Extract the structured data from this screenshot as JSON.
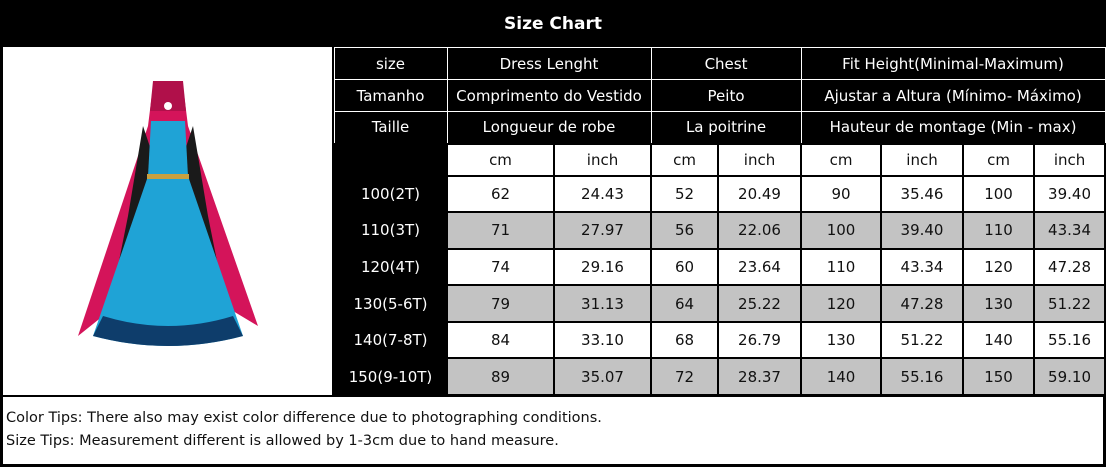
{
  "title": "Size Chart",
  "header_rows": [
    [
      "size",
      "Dress Lenght",
      "Chest",
      "Fit Height(Minimal-Maximum)"
    ],
    [
      "Tamanho",
      "Comprimento do Vestido",
      "Peito",
      "Ajustar a Altura (Mínimo- Máximo)"
    ],
    [
      "Taille",
      "Longueur de robe",
      "La poitrine",
      "Hauteur de montage (Min - max)"
    ]
  ],
  "units": [
    "",
    "cm",
    "inch",
    "cm",
    "inch",
    "cm",
    "inch",
    "cm",
    "inch"
  ],
  "rows": [
    [
      "100(2T)",
      "62",
      "24.43",
      "52",
      "20.49",
      "90",
      "35.46",
      "100",
      "39.40"
    ],
    [
      "110(3T)",
      "71",
      "27.97",
      "56",
      "22.06",
      "100",
      "39.40",
      "110",
      "43.34"
    ],
    [
      "120(4T)",
      "74",
      "29.16",
      "60",
      "23.64",
      "110",
      "43.34",
      "120",
      "47.28"
    ],
    [
      "130(5-6T)",
      "79",
      "31.13",
      "64",
      "25.22",
      "120",
      "47.28",
      "130",
      "51.22"
    ],
    [
      "140(7-8T)",
      "84",
      "33.10",
      "68",
      "26.79",
      "130",
      "51.22",
      "140",
      "55.16"
    ],
    [
      "150(9-10T)",
      "89",
      "35.07",
      "72",
      "28.37",
      "140",
      "55.16",
      "150",
      "59.10"
    ]
  ],
  "tips": [
    "Color Tips: There also may exist color difference due to photographing conditions.",
    "Size Tips: Measurement different is allowed by 1-3cm due to hand measure."
  ],
  "colors": {
    "cape": "#d4145a",
    "dress": "#1fa3d6",
    "sleeves": "#1a1a1a",
    "alt_row": "#c3c3c3"
  }
}
